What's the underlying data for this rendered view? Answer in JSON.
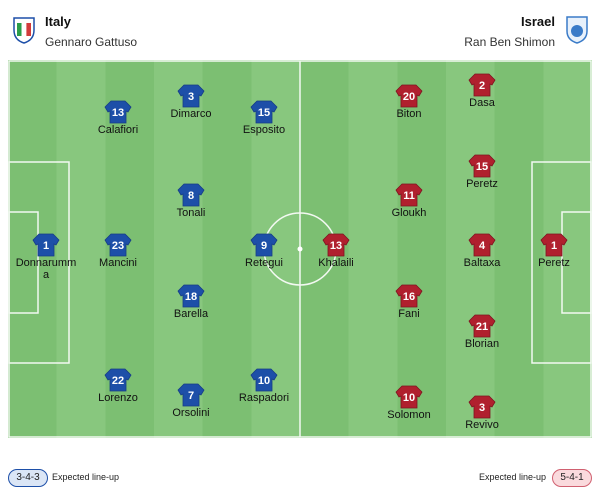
{
  "header": {
    "home": {
      "name": "Italy",
      "coach": "Gennaro Gattuso"
    },
    "away": {
      "name": "Israel",
      "coach": "Ran Ben Shimon"
    }
  },
  "players": [
    {
      "team": "home",
      "number": "1",
      "name": "Donnarumma"
    },
    {
      "team": "home",
      "number": "13",
      "name": "Calafiori"
    },
    {
      "team": "home",
      "number": "3",
      "name": "Dimarco"
    },
    {
      "team": "home",
      "number": "15",
      "name": "Esposito"
    },
    {
      "team": "home",
      "number": "8",
      "name": "Tonali"
    },
    {
      "team": "home",
      "number": "23",
      "name": "Mancini"
    },
    {
      "team": "home",
      "number": "9",
      "name": "Retegui"
    },
    {
      "team": "home",
      "number": "18",
      "name": "Barella"
    },
    {
      "team": "home",
      "number": "22",
      "name": "Lorenzo"
    },
    {
      "team": "home",
      "number": "7",
      "name": "Orsolini"
    },
    {
      "team": "home",
      "number": "10",
      "name": "Raspadori"
    },
    {
      "team": "away",
      "number": "13",
      "name": "Khalaili"
    },
    {
      "team": "away",
      "number": "20",
      "name": "Biton"
    },
    {
      "team": "away",
      "number": "11",
      "name": "Gloukh"
    },
    {
      "team": "away",
      "number": "16",
      "name": "Fani"
    },
    {
      "team": "away",
      "number": "10",
      "name": "Solomon"
    },
    {
      "team": "away",
      "number": "2",
      "name": "Dasa"
    },
    {
      "team": "away",
      "number": "15",
      "name": "Peretz"
    },
    {
      "team": "away",
      "number": "4",
      "name": "Baltaxa"
    },
    {
      "team": "away",
      "number": "21",
      "name": "Blorian"
    },
    {
      "team": "away",
      "number": "3",
      "name": "Revivo"
    },
    {
      "team": "away",
      "number": "1",
      "name": "Peretz"
    }
  ],
  "footer": {
    "home": {
      "formation": "3-4-3",
      "label": "Expected line-up"
    },
    "away": {
      "formation": "5-4-1",
      "label": "Expected line-up"
    }
  }
}
